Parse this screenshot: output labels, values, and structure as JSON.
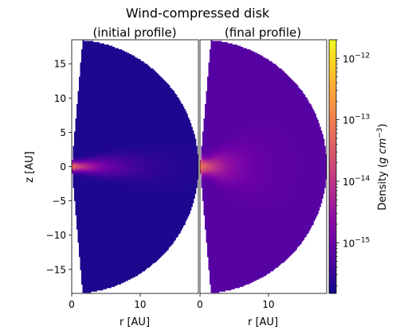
{
  "figure": {
    "suptitle": "Wind-compressed disk"
  },
  "panels": [
    {
      "title": "(initial profile)",
      "xlabel": "r [AU]",
      "ylabel": "z [AU]"
    },
    {
      "title": "(final profile)",
      "xlabel": "r [AU]"
    }
  ],
  "colorbar": {
    "label": "Density ($g$ $cm^{-3}$)",
    "label_main": "Density (",
    "label_unit_g": "g",
    "label_unit_cm": "cm",
    "label_unit_exp": "−3",
    "label_close": ")",
    "scale": "log",
    "range": [
      1.5e-16,
      2e-12
    ],
    "colormap": "plasma",
    "ticks": [
      {
        "base": "10",
        "exp": "−12",
        "value": 1e-12
      },
      {
        "base": "10",
        "exp": "−13",
        "value": 1e-13
      },
      {
        "base": "10",
        "exp": "−14",
        "value": 1e-14
      },
      {
        "base": "10",
        "exp": "−15",
        "value": 1e-15
      }
    ]
  },
  "chart_data": [
    {
      "type": "heatmap",
      "title": "(initial profile)",
      "xlabel": "r [AU]",
      "ylabel": "z [AU]",
      "xlim": [
        0,
        18.5
      ],
      "ylim": [
        -18.5,
        18.5
      ],
      "x_ticks": [
        0,
        10
      ],
      "y_ticks": [
        15,
        10,
        5,
        0,
        -5,
        -10,
        -15
      ],
      "y_tick_labels": [
        "15",
        "10",
        "5",
        "0",
        "−5",
        "−10",
        "−15"
      ],
      "domain": {
        "r_outer": 18.5,
        "inner_boundary_r_at_z0": 0.0,
        "inner_boundary_r_at_zmax": 1.6
      },
      "density_log10": {
        "background": -15.7,
        "peak": -13.2,
        "peak_location_r": 0.0,
        "scale_height_ratio": 0.11,
        "radial_scale": 4.5
      }
    },
    {
      "type": "heatmap",
      "title": "(final profile)",
      "xlabel": "r [AU]",
      "xlim": [
        0,
        18.5
      ],
      "ylim": [
        -18.5,
        18.5
      ],
      "x_ticks": [
        0,
        10
      ],
      "domain": {
        "r_outer": 18.5,
        "inner_boundary_r_at_z0": 0.0,
        "inner_boundary_r_at_zmax": 1.6
      },
      "density_log10": {
        "background": -15.2,
        "peak": -13.0,
        "peak_location_r": 0.0,
        "scale_height_ratio": 0.35,
        "radial_scale": 3.5
      }
    }
  ]
}
